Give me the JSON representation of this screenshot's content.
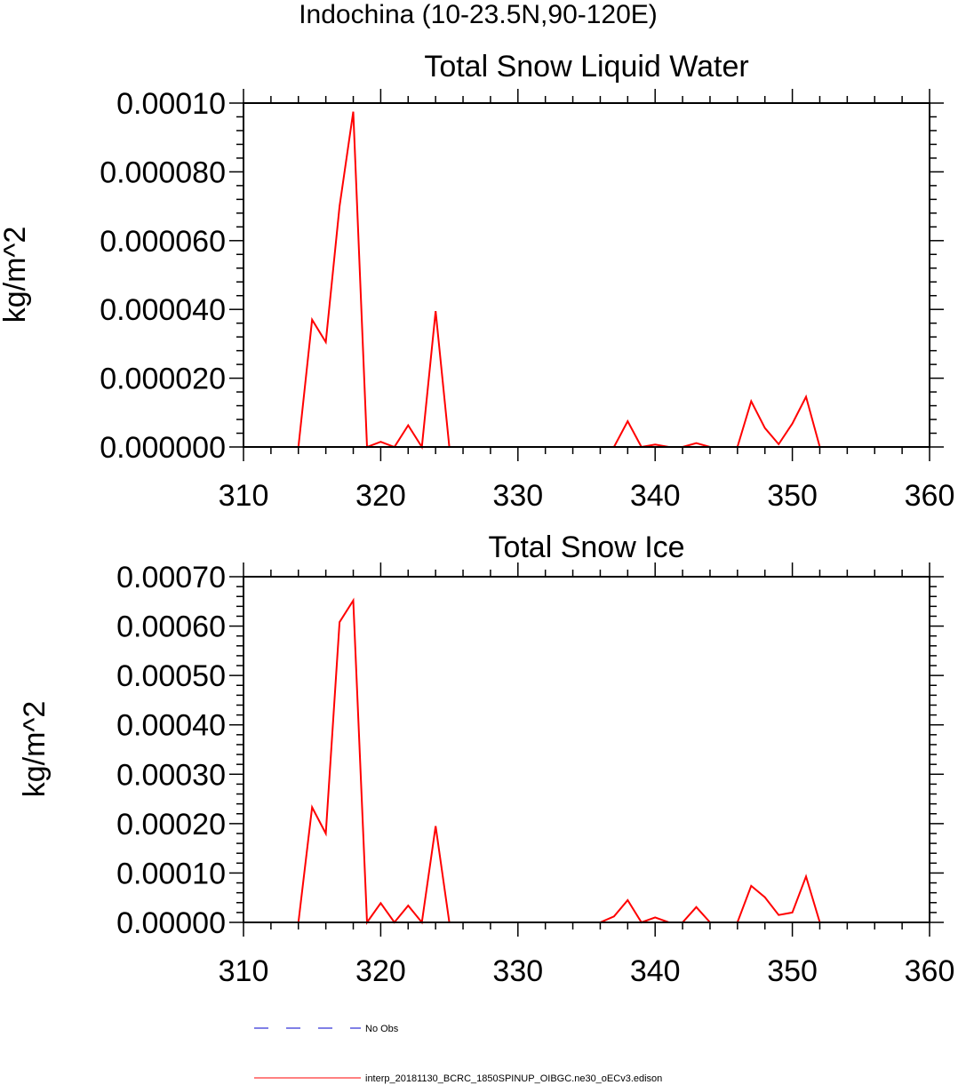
{
  "title": "Indochina (10-23.5N,90-120E)",
  "colors": {
    "model": "#ff0000",
    "obs": "#0000cc",
    "axis": "#000000"
  },
  "legend": [
    {
      "label": "No Obs",
      "style": "dashed",
      "color": "#0000cc"
    },
    {
      "label": "interp_20181130_BCRC_1850SPINUP_OIBGC.ne30_oECv3.edison",
      "style": "solid",
      "color": "#ff0000"
    }
  ],
  "chart_data": [
    {
      "type": "line",
      "title": "Total Snow Liquid Water",
      "xlabel": "",
      "ylabel": "kg/m^2",
      "xlim": [
        310,
        360
      ],
      "ylim": [
        0,
        0.0001
      ],
      "xticks": [
        310,
        320,
        330,
        340,
        350,
        360
      ],
      "xtick_labels": [
        "310",
        "320",
        "330",
        "340",
        "350",
        "360"
      ],
      "yticks": [
        0,
        2e-05,
        4e-05,
        6e-05,
        8e-05,
        0.0001
      ],
      "ytick_labels": [
        "0.000000",
        "0.000020",
        "0.000040",
        "0.000060",
        "0.000080",
        "0.00010"
      ],
      "grid": false,
      "series": [
        {
          "x": [
            314,
            315,
            316,
            317,
            318,
            319,
            320,
            321,
            322,
            323,
            324,
            325,
            326,
            327,
            328,
            329,
            330,
            331,
            332,
            333,
            334,
            335,
            336,
            337,
            338,
            339,
            340,
            341,
            342,
            343,
            344,
            345,
            346,
            347,
            348,
            349,
            350,
            351,
            352,
            353,
            354,
            355,
            356,
            357,
            358,
            359,
            360
          ],
          "values": [
            0,
            3.7e-05,
            3.05e-05,
            7e-05,
            9.75e-05,
            0,
            1.5e-06,
            0,
            6.3e-06,
            0,
            3.95e-05,
            0,
            0,
            0,
            0,
            0,
            0,
            0,
            0,
            0,
            0,
            0,
            0,
            0,
            7.5e-06,
            0,
            7e-07,
            0,
            0,
            1.1e-06,
            0,
            0,
            0,
            1.33e-05,
            5.5e-06,
            8e-07,
            6.8e-06,
            1.46e-05,
            0,
            0,
            0,
            0,
            0,
            0,
            0,
            0,
            0
          ]
        }
      ]
    },
    {
      "type": "line",
      "title": "Total Snow Ice",
      "xlabel": "",
      "ylabel": "kg/m^2",
      "xlim": [
        310,
        360
      ],
      "ylim": [
        0,
        0.0007
      ],
      "xticks": [
        310,
        320,
        330,
        340,
        350,
        360
      ],
      "xtick_labels": [
        "310",
        "320",
        "330",
        "340",
        "350",
        "360"
      ],
      "yticks": [
        0,
        0.0001,
        0.0002,
        0.0003,
        0.0004,
        0.0005,
        0.0006,
        0.0007
      ],
      "ytick_labels": [
        "0.00000",
        "0.00010",
        "0.00020",
        "0.00030",
        "0.00040",
        "0.00050",
        "0.00060",
        "0.00070"
      ],
      "grid": false,
      "series": [
        {
          "x": [
            314,
            315,
            316,
            317,
            318,
            319,
            320,
            321,
            322,
            323,
            324,
            325,
            326,
            327,
            328,
            329,
            330,
            331,
            332,
            333,
            334,
            335,
            336,
            337,
            338,
            339,
            340,
            341,
            342,
            343,
            344,
            345,
            346,
            347,
            348,
            349,
            350,
            351,
            352,
            353,
            354
          ],
          "values": [
            0,
            0.000233,
            0.00018,
            0.000608,
            0.000652,
            0,
            3.9e-05,
            0,
            3.4e-05,
            0,
            0.000195,
            0,
            0,
            0,
            0,
            0,
            0,
            0,
            0,
            0,
            0,
            0,
            0,
            1.2e-05,
            4.5e-05,
            0,
            1e-05,
            0,
            0,
            3.1e-05,
            0,
            0,
            0,
            7.4e-05,
            5.1e-05,
            1.5e-05,
            2e-05,
            9.3e-05,
            0,
            0,
            0
          ]
        }
      ]
    }
  ]
}
